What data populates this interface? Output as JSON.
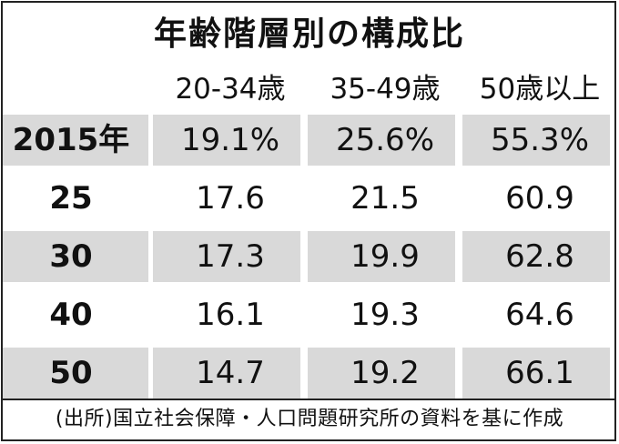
{
  "chart_data": {
    "type": "table",
    "title": "年齢階層別の構成比",
    "columns": [
      "20-34歳",
      "35-49歳",
      "50歳以上"
    ],
    "rows": [
      {
        "label": "2015年",
        "values": [
          "19.1%",
          "25.6%",
          "55.3%"
        ],
        "shaded": true
      },
      {
        "label": "25",
        "values": [
          "17.6",
          "21.5",
          "60.9"
        ],
        "shaded": false
      },
      {
        "label": "30",
        "values": [
          "17.3",
          "19.9",
          "62.8"
        ],
        "shaded": true
      },
      {
        "label": "40",
        "values": [
          "16.1",
          "19.3",
          "64.6"
        ],
        "shaded": false
      },
      {
        "label": "50",
        "values": [
          "14.7",
          "19.2",
          "66.1"
        ],
        "shaded": true
      }
    ],
    "source": "(出所)国立社会保障・人口問題研究所の資料を基に作成",
    "colors": {
      "shade": "#d9d9d9",
      "text": "#111111"
    }
  }
}
